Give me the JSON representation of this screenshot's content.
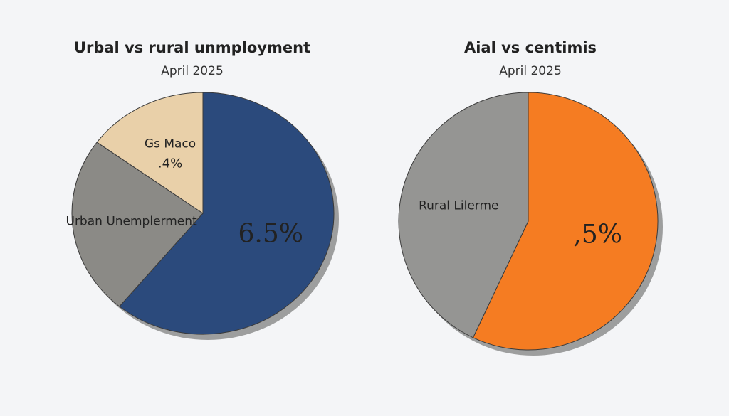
{
  "chart_data": [
    {
      "type": "pie",
      "title": "Urbal vs rural unmployment",
      "subtitle": "April 2025",
      "categories": [
        null,
        "Urban Unemplerment",
        "Gs Maco"
      ],
      "values": [
        61,
        24,
        15
      ],
      "annotations": [
        "6.5%",
        null,
        ".4%"
      ],
      "colors": [
        "#2b4a7c",
        "#8b8a86",
        "#e9d0a9"
      ]
    },
    {
      "type": "pie",
      "title": "Aial vs centimis",
      "subtitle": "April 2025",
      "categories": [
        null,
        "Rural Lilerme"
      ],
      "values": [
        57,
        43
      ],
      "annotations": [
        ",5%",
        null
      ],
      "colors": [
        "#f57c22",
        "#959593"
      ]
    }
  ]
}
